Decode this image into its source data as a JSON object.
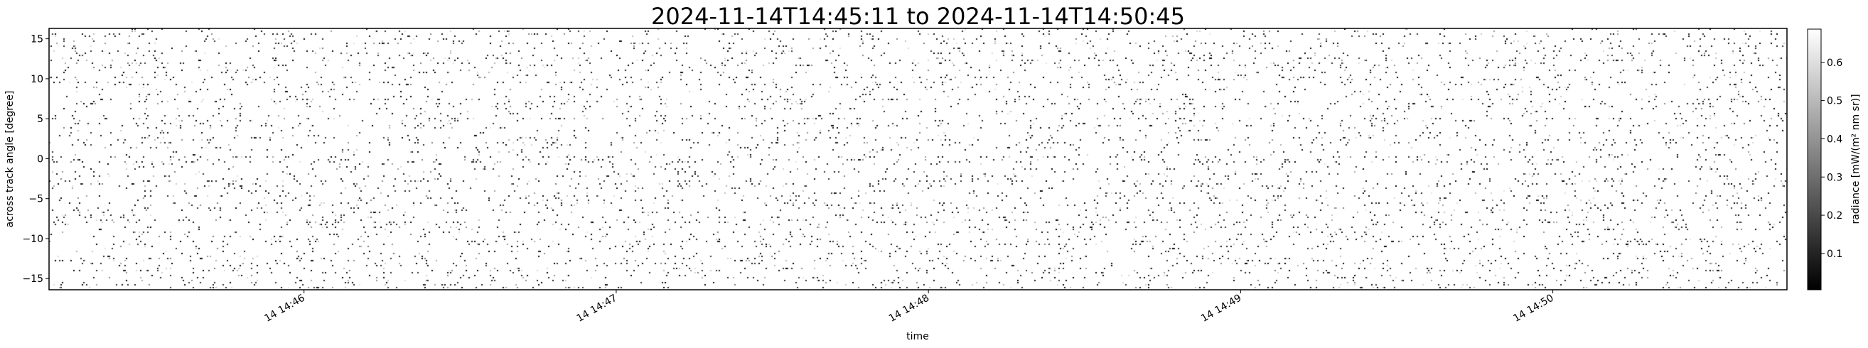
{
  "chart_data": {
    "type": "heatmap",
    "title": "2024-11-14T14:45:11 to 2024-11-14T14:50:45",
    "xlabel": "time",
    "ylabel": "across track angle [degree]",
    "xlim": [
      "2024-11-14T14:45:11",
      "2024-11-14T14:50:45"
    ],
    "ylim": [
      -16.4,
      16.3
    ],
    "x_ticks": [
      {
        "value": "2024-11-14T14:46:00",
        "label": "14 14:46"
      },
      {
        "value": "2024-11-14T14:47:00",
        "label": "14 14:47"
      },
      {
        "value": "2024-11-14T14:48:00",
        "label": "14 14:48"
      },
      {
        "value": "2024-11-14T14:49:00",
        "label": "14 14:49"
      },
      {
        "value": "2024-11-14T14:50:00",
        "label": "14 14:50"
      }
    ],
    "y_ticks": [
      15,
      10,
      5,
      0,
      -5,
      -10,
      -15
    ],
    "y_tick_labels": [
      "15",
      "10",
      "5",
      "0",
      "−5",
      "−10",
      "−15"
    ],
    "grid": false,
    "colormap": "gray",
    "colorbar": {
      "label": "radiance [mW/(m² nm sr)]",
      "range": [
        0.005,
        0.687
      ],
      "ticks": [
        0.1,
        0.2,
        0.3,
        0.4,
        0.5,
        0.6
      ],
      "tick_labels": [
        "0.1",
        "0.2",
        "0.3",
        "0.4",
        "0.5",
        "0.6"
      ],
      "colors": [
        "#000000",
        "#ffffff"
      ]
    },
    "background_color": "#ffffff",
    "description_of_values": "sparse noisy field: mostly high radiance (white) with scattered low-radiance (dark) pixels"
  }
}
